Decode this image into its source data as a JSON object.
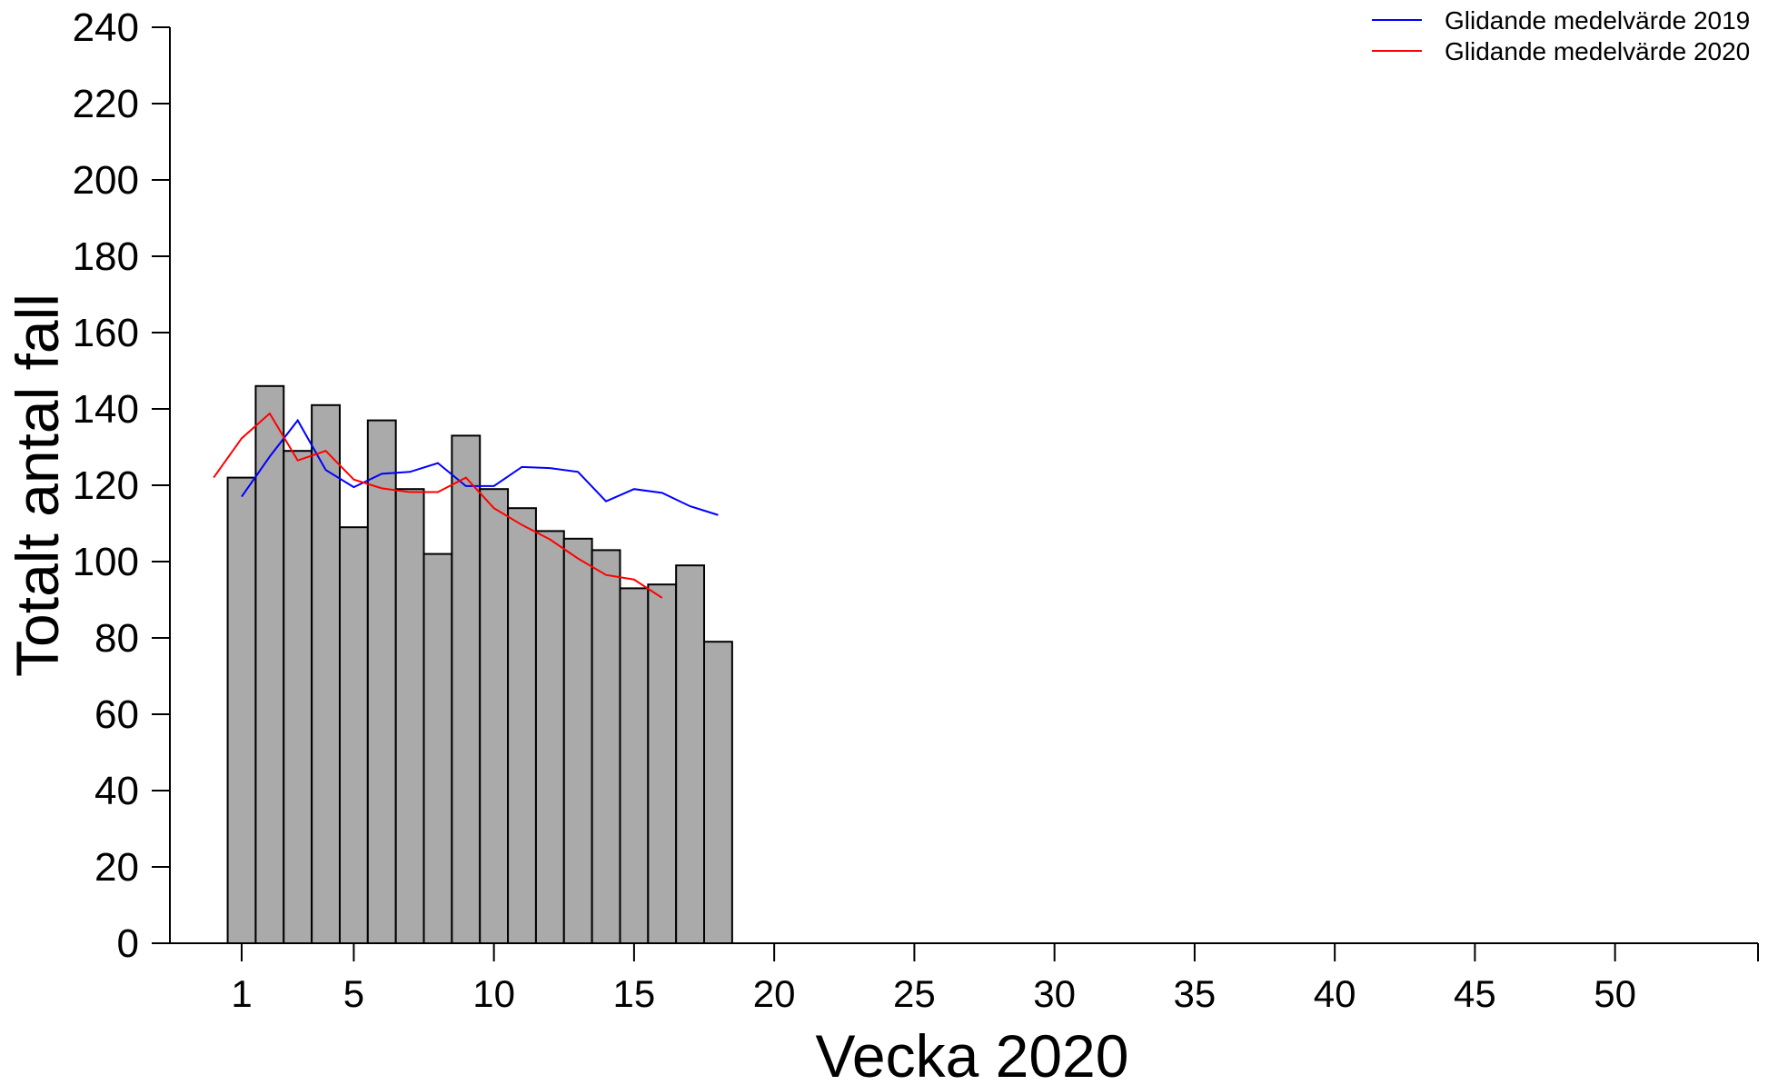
{
  "chart_data": {
    "type": "bar",
    "title": "",
    "xlabel": "Vecka 2020",
    "ylabel": "Totalt antal fall",
    "ylim": [
      0,
      240
    ],
    "yticks": [
      0,
      20,
      40,
      60,
      80,
      100,
      120,
      140,
      160,
      180,
      200,
      220,
      240
    ],
    "xlim": [
      -1.5,
      55.5
    ],
    "xticks": [
      1,
      5,
      10,
      15,
      20,
      25,
      30,
      35,
      40,
      45,
      50
    ],
    "grid": false,
    "legend_position": "top-right",
    "bar_color": "#aaaaaa",
    "weeks": [
      1,
      2,
      3,
      4,
      5,
      6,
      7,
      8,
      9,
      10,
      11,
      12,
      13,
      14,
      15,
      16,
      17,
      18
    ],
    "values": [
      122,
      146,
      129,
      141,
      109,
      137,
      119,
      102,
      133,
      119,
      114,
      108,
      106,
      103,
      93,
      94,
      99,
      79
    ],
    "series": [
      {
        "name": "Glidande medelvärde 2019",
        "color": "#0000ff",
        "x": [
          1,
          2,
          3,
          4,
          5,
          6,
          7,
          8,
          9,
          10,
          11,
          12,
          13,
          14,
          15,
          16,
          17,
          18
        ],
        "values": [
          117,
          127.5,
          137,
          124,
          119.5,
          123,
          123.5,
          125.8,
          119.8,
          119.8,
          124.8,
          124.5,
          123.5,
          115.8,
          119,
          118,
          114.5,
          112.2
        ]
      },
      {
        "name": "Glidande medelvärde 2020",
        "color": "#ff0000",
        "x": [
          0,
          1,
          2,
          3,
          4,
          5,
          6,
          7,
          8,
          9,
          10,
          11,
          12,
          13,
          14,
          15,
          16
        ],
        "values": [
          122,
          132.3,
          138.8,
          126.5,
          129,
          121.5,
          119.2,
          118.2,
          118.2,
          122,
          114,
          109.6,
          105.8,
          100.8,
          96.5,
          95.3,
          90.5
        ]
      }
    ]
  }
}
